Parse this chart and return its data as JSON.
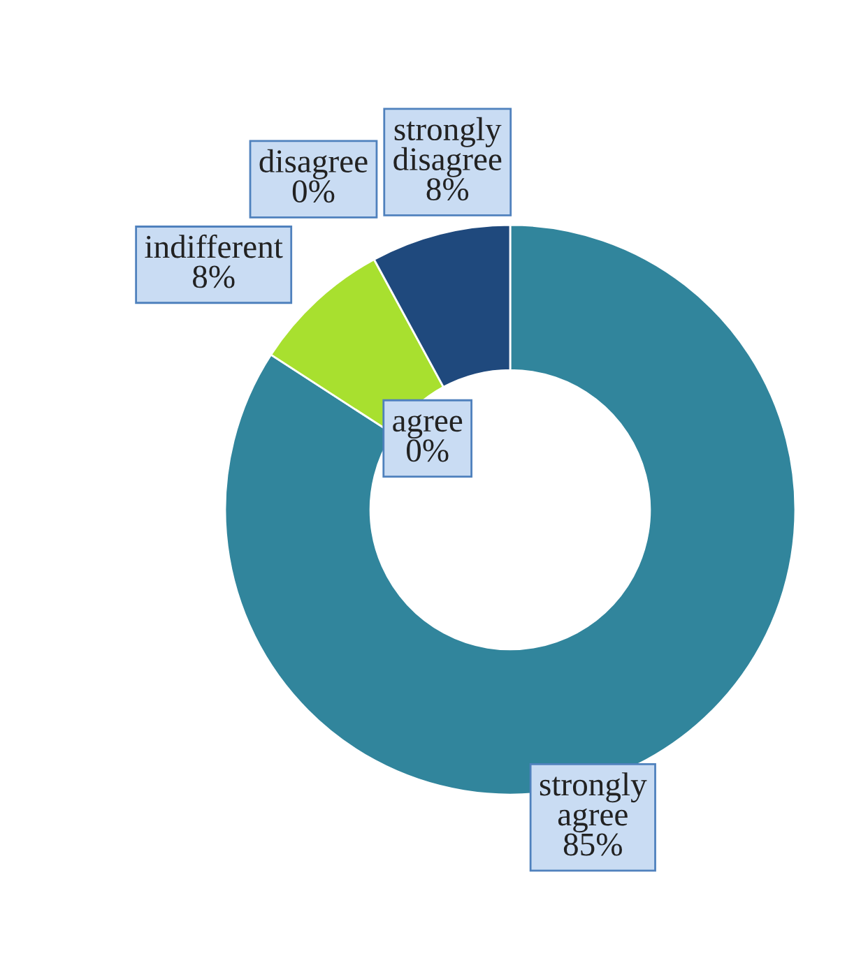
{
  "chart_data": {
    "type": "donut",
    "categories": [
      "strongly agree",
      "agree",
      "indifferent",
      "disagree",
      "strongly disagree"
    ],
    "values": [
      85,
      0,
      8,
      0,
      8
    ],
    "value_labels": [
      "85%",
      "0%",
      "8%",
      "0%",
      "8%"
    ],
    "colors": [
      "#31859c",
      "#7fb2c4",
      "#a8e02f",
      "#3b6ea5",
      "#1f497d"
    ],
    "legend": false
  }
}
